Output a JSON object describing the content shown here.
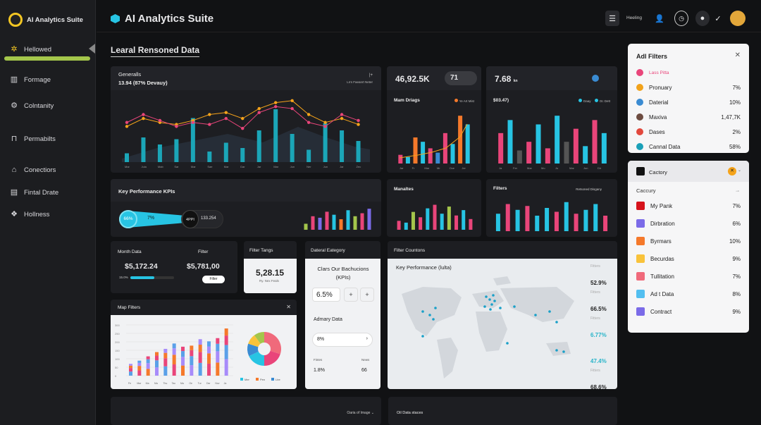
{
  "brand": {
    "name": "AI Analytics Suite"
  },
  "sidebar": {
    "items": [
      {
        "label": "Hellowed",
        "icon": "gear-icon"
      },
      {
        "label": "Formage",
        "icon": "building-icon"
      },
      {
        "label": "Colntanity",
        "icon": "cog-icon"
      },
      {
        "label": "Permabilts",
        "icon": "lock-icon"
      },
      {
        "label": "Conectiors",
        "icon": "home-icon"
      },
      {
        "label": "Fintal Drate",
        "icon": "table-icon"
      },
      {
        "label": "Hollness",
        "icon": "network-icon"
      }
    ]
  },
  "header": {
    "title": "AI Analytics Suite",
    "help_label": "Heeling",
    "section_title": "Learal Rensoned Data"
  },
  "cards": {
    "generals": {
      "title": "Generalls",
      "subtitle": "13.94 (87% Devauy)",
      "note": "Lrrs Faeanrt Neter",
      "note_icon": "|+",
      "x_labels": [
        "Mar",
        "Jula",
        "Mab",
        "Sar",
        "Mar",
        "Sae",
        "Mar",
        "Dar",
        "Jar",
        "Mar",
        "Jun",
        "Ner",
        "Jun",
        "Jar",
        "Zec"
      ]
    },
    "stat1": {
      "value": "46,92.5K",
      "badge_value": "71",
      "badge_sub": "XL+\nPoun",
      "title": "Mam Driags",
      "legend": "Ye Art Mist",
      "x_labels": [
        "Jar",
        "Fr",
        "Mar",
        "Mr",
        "Oce",
        "Jer"
      ]
    },
    "stat2": {
      "value": "7.68",
      "value_unit": "kn",
      "sub": "$03.47)",
      "legend1": "Daay",
      "legend2": "Oc Dett",
      "x_labels": [
        "Ja",
        "Fer",
        "Mar",
        "Mo",
        "Jo",
        "Mar",
        "Jun",
        "Dir"
      ]
    },
    "kpis": {
      "title": "Key Performance KPIs",
      "seg1": "66%",
      "seg2": "7%",
      "seg3": "4PPI",
      "seg4": "133.254"
    },
    "manaltes": {
      "title": "Manaltes"
    },
    "filters": {
      "title": "Filters",
      "legend": "Retsoned Disgany"
    },
    "month": {
      "title": "Month Data",
      "title2": "Filter",
      "v1": "$5,172.24",
      "v2": "$5,781,00",
      "small": "15.0%",
      "btn": "Filter"
    },
    "filter_tangs": {
      "title": "Filter Tangs",
      "value": "5,28.15",
      "sub": "Ry. Nex Feals"
    },
    "dateral": {
      "title": "Dateral Eategory",
      "sub_title": "Clars Our Bachucions\n(KPIs)",
      "pct": "6.5%",
      "adv": "Admary Data",
      "adv_val": "8%",
      "foot_l": "Fintes",
      "foot_r": "News",
      "foot_lv": "1.8%",
      "foot_rv": "66"
    },
    "filter_countons": {
      "title": "Filter Countons",
      "map_title": "Key Performance (lulta)",
      "rows": [
        {
          "label": "Fitters",
          "value": "52.9%",
          "color": "#222"
        },
        {
          "label": "Fitters",
          "value": "66.5%",
          "color": "#222"
        },
        {
          "label": "Fitters",
          "value": "6.77%",
          "color": "#27b4c9"
        },
        {
          "label": "",
          "value": "47.4%",
          "color": "#27b4c9"
        },
        {
          "label": "Fitters",
          "value": "68.6%",
          "color": "#222"
        }
      ]
    },
    "map_filters": {
      "title": "Map Filters",
      "x_labels": [
        "Fe",
        "Mar",
        "Ma",
        "Ma",
        "Thu",
        "Tac",
        "Ma",
        "Oe",
        "Tur",
        "Dsr",
        "Nov",
        "Ja"
      ],
      "y_labels": [
        "300",
        "250",
        "200",
        "150",
        "100",
        "50",
        "0"
      ],
      "pie_legend": [
        "Mer",
        "Pen",
        "Lbe"
      ]
    },
    "bottom1": {
      "label": "Oaria of Image"
    },
    "bottom2": {
      "title": "Oil Data staces"
    }
  },
  "adl_filters": {
    "title": "Adl Filters",
    "items": [
      {
        "label": "Lass Pitta",
        "value": "",
        "color": "#e9457a",
        "icon": "heart-icon"
      },
      {
        "label": "Pronuary",
        "value": "7%",
        "color": "#f1a21a",
        "icon": "circle-icon"
      },
      {
        "label": "Daterial",
        "value": "10%",
        "color": "#3a8bd2",
        "icon": "link-icon"
      },
      {
        "label": "Maxiva",
        "value": "1,47,7K",
        "color": "#6d4c41",
        "icon": "avatar-icon"
      },
      {
        "label": "Dases",
        "value": "2%",
        "color": "#e2483d",
        "icon": "play-icon"
      },
      {
        "label": "Cannal Data",
        "value": "58%",
        "color": "#1aa0b8",
        "icon": "globe-icon"
      }
    ]
  },
  "category_panel": {
    "title": "Cactory",
    "sub": "Caccury",
    "items": [
      {
        "label": "My Pank",
        "value": "7%",
        "color": "#d6131b"
      },
      {
        "label": "Dirbration",
        "value": "6%",
        "color": "#7b6be8"
      },
      {
        "label": "Byrmars",
        "value": "10%",
        "color": "#f5792b"
      },
      {
        "label": "Becurdas",
        "value": "9%",
        "color": "#f9c33b"
      },
      {
        "label": "Tullitation",
        "value": "7%",
        "color": "#f06a7b"
      },
      {
        "label": "Ad t Data",
        "value": "8%",
        "color": "#53bff0"
      },
      {
        "label": "Contract",
        "value": "9%",
        "color": "#7b6be8"
      }
    ]
  },
  "chart_data": [
    {
      "type": "bar",
      "name": "generals-bars",
      "values": [
        5,
        14,
        10,
        13,
        25,
        6,
        11,
        8,
        18,
        30,
        16,
        7,
        22,
        18,
        12
      ]
    },
    {
      "type": "line",
      "name": "generals-line-orange",
      "values": [
        18,
        22,
        20,
        19,
        21,
        24,
        25,
        22,
        27,
        30,
        31,
        24,
        20,
        22,
        19
      ]
    },
    {
      "type": "line",
      "name": "generals-line-pink",
      "values": [
        20,
        24,
        21,
        18,
        20,
        19,
        22,
        17,
        25,
        28,
        27,
        20,
        18,
        24,
        21
      ]
    },
    {
      "type": "bar",
      "name": "stat1-bars",
      "values": [
        4,
        3,
        12,
        10,
        7,
        5,
        14,
        9,
        22,
        18
      ]
    },
    {
      "type": "bar",
      "name": "stat2-bars",
      "values": [
        14,
        20,
        6,
        10,
        18,
        7,
        22,
        10,
        16,
        8,
        20,
        14
      ]
    },
    {
      "type": "bar",
      "name": "kpi-bars",
      "values": [
        4,
        9,
        8,
        12,
        10,
        7,
        13,
        9,
        11,
        14
      ]
    },
    {
      "type": "bar",
      "name": "manaltes-bars",
      "values": [
        5,
        4,
        10,
        7,
        12,
        14,
        9,
        13,
        8,
        11,
        6
      ]
    },
    {
      "type": "bar",
      "name": "filters-bars",
      "values": [
        9,
        14,
        11,
        13,
        8,
        12,
        10,
        15,
        9,
        11,
        14,
        8
      ]
    },
    {
      "type": "bar",
      "name": "map-filters-bars",
      "values": [
        55,
        70,
        90,
        110,
        125,
        150,
        135,
        140,
        170,
        160,
        175,
        220
      ]
    },
    {
      "type": "pie",
      "name": "map-filters-pie",
      "values": [
        30,
        20,
        18,
        12,
        10,
        10
      ]
    }
  ]
}
